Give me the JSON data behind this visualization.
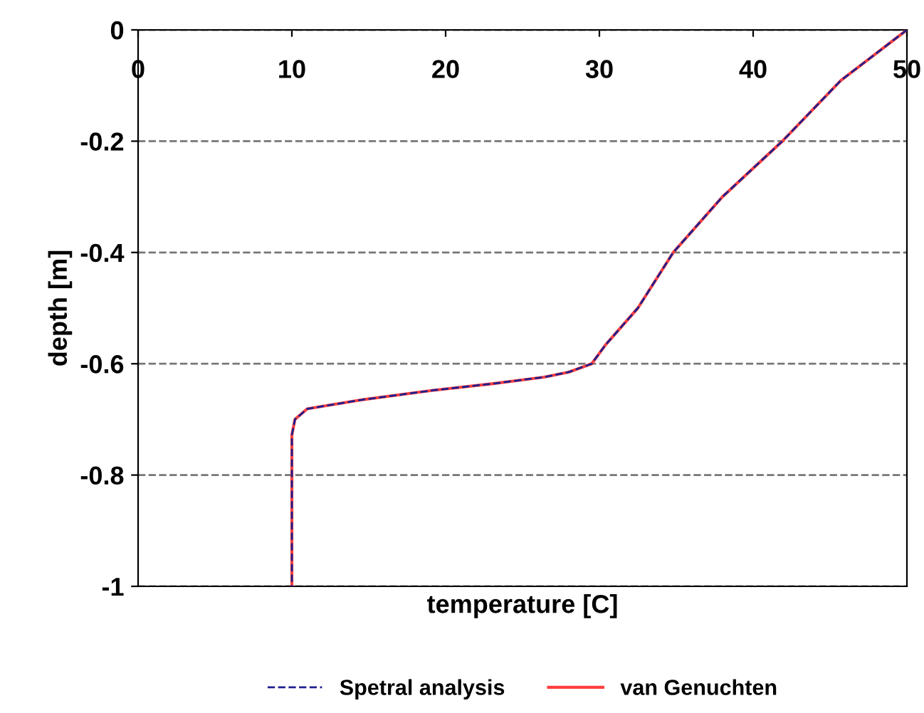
{
  "chart_data": {
    "type": "line",
    "xlabel": "temperature [C]",
    "ylabel": "depth [m]",
    "xlim": [
      0,
      50
    ],
    "xticks": [
      0,
      10,
      20,
      30,
      40,
      50
    ],
    "ylim": [
      -1,
      0
    ],
    "yticks": [
      -1,
      -0.8,
      -0.6,
      -0.4,
      -0.2,
      0
    ],
    "grid": "y",
    "legend": "bottom",
    "series": [
      {
        "name": "Spetral analysis",
        "color": "#1f1f8f",
        "line_style": "dashed",
        "x": [
          50,
          45.7,
          41.9,
          38,
          34.8,
          32.5,
          30.4,
          29.5,
          28,
          26.4,
          23,
          19.1,
          14.5,
          11,
          10.2,
          10,
          10,
          10
        ],
        "values": [
          0,
          -0.091,
          -0.2,
          -0.3,
          -0.4,
          -0.5,
          -0.566,
          -0.6,
          -0.615,
          -0.624,
          -0.636,
          -0.648,
          -0.665,
          -0.681,
          -0.7,
          -0.728,
          -0.8,
          -1
        ]
      },
      {
        "name": "van Genuchten",
        "color": "#ff4040",
        "line_style": "solid",
        "x": [
          50,
          45.7,
          41.9,
          38,
          34.8,
          32.5,
          30.4,
          29.5,
          28,
          26.4,
          23,
          19.1,
          14.5,
          11,
          10.2,
          10,
          10,
          10
        ],
        "values": [
          0,
          -0.091,
          -0.2,
          -0.3,
          -0.4,
          -0.5,
          -0.566,
          -0.6,
          -0.615,
          -0.624,
          -0.636,
          -0.648,
          -0.665,
          -0.681,
          -0.7,
          -0.728,
          -0.8,
          -1
        ]
      }
    ]
  }
}
